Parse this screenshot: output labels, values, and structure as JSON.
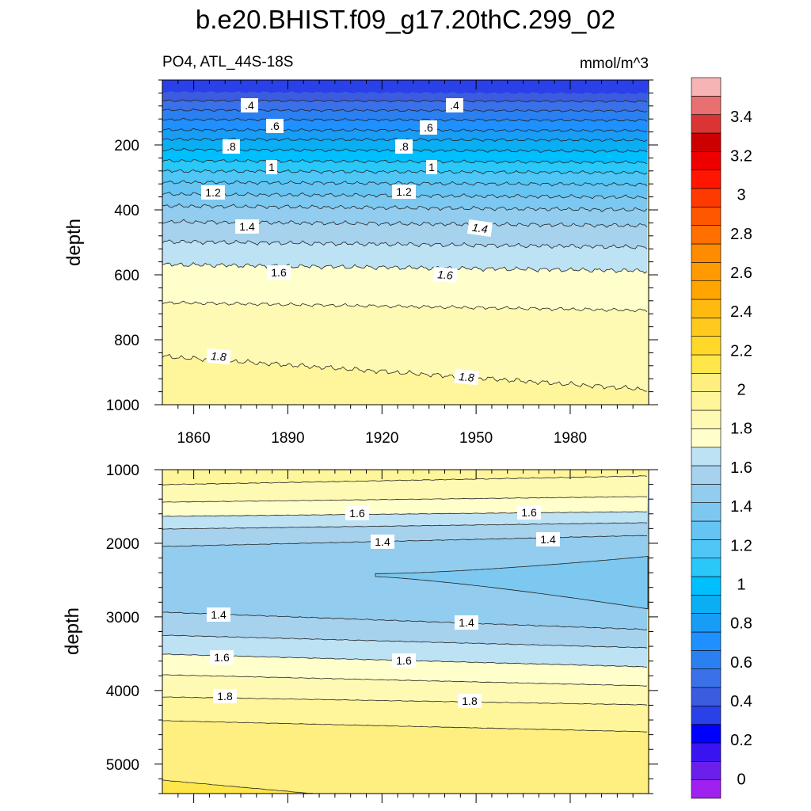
{
  "chart_data": {
    "type": "contour",
    "title": "b.e20.BHIST.f09_g17.20thC.299_02",
    "subtitle_left": "PO4, ATL_44S-18S",
    "subtitle_right": "mmol/m^3",
    "variable": "PO4",
    "units": "mmol/m^3",
    "x_ticks": [
      "1860",
      "1890",
      "1920",
      "1950",
      "1980"
    ],
    "x_tick_values": [
      1860,
      1890,
      1920,
      1950,
      1980
    ],
    "xlim": [
      1850,
      2005
    ],
    "panels": [
      {
        "name": "upper",
        "ylabel": "depth",
        "ylim": [
          0,
          1000
        ],
        "y_ticks": [
          "200",
          "400",
          "600",
          "800",
          "1000"
        ],
        "y_tick_values": [
          200,
          400,
          600,
          800,
          1000
        ],
        "contour_labels": [
          ".4",
          ".4",
          ".6",
          ".6",
          ".8",
          ".8",
          "1",
          "1",
          "1.2",
          "1.2",
          "1.4",
          "1.4",
          "1.6",
          "1.6",
          "1.8",
          "1.8"
        ],
        "approx_isoline_depths": [
          {
            "level": 0.4,
            "depth": 75
          },
          {
            "level": 0.6,
            "depth": 135
          },
          {
            "level": 0.8,
            "depth": 195
          },
          {
            "level": 1.0,
            "depth": 255
          },
          {
            "level": 1.2,
            "depth": 340
          },
          {
            "level": 1.4,
            "depth": 460
          },
          {
            "level": 1.6,
            "depth": 600
          },
          {
            "level": 1.7,
            "depth": 700
          },
          {
            "level": 1.8,
            "depth": 870
          }
        ]
      },
      {
        "name": "lower",
        "ylabel": "depth",
        "ylim": [
          1000,
          5400
        ],
        "y_ticks": [
          "1000",
          "2000",
          "3000",
          "4000",
          "5000"
        ],
        "y_tick_values": [
          1000,
          2000,
          3000,
          4000,
          5000
        ],
        "contour_labels": [
          "1.6",
          "1.6",
          "1.4",
          "1.4",
          "1.4",
          "1.4",
          "1.6",
          "1.6",
          "1.8",
          "1.8"
        ],
        "description": "PO4 minimum (<1.35) core near 2400 m expanding after 1920"
      }
    ],
    "colorbar": {
      "labels": [
        "3.4",
        "3.2",
        "3",
        "2.8",
        "2.6",
        "2.4",
        "2.2",
        "2",
        "1.8",
        "1.6",
        "1.4",
        "1.2",
        "1",
        "0.8",
        "0.6",
        "0.4",
        "0.2",
        "0"
      ],
      "min": -0.1,
      "max": 3.6,
      "step": 0.1,
      "colors": [
        "#A020F0",
        "#6A1FEA",
        "#3A14F0",
        "#0000FF",
        "#2A40E8",
        "#3C5CE0",
        "#3A70E8",
        "#2A80F0",
        "#1E90FF",
        "#179DF5",
        "#0AAEF2",
        "#00BFFF",
        "#29C8F8",
        "#4FC6F5",
        "#66C4F2",
        "#7CC8F0",
        "#92CCEE",
        "#A6D2EE",
        "#BCE2F4",
        "#FFFFCC",
        "#FFFAB3",
        "#FFF59B",
        "#FFEF80",
        "#FFE64A",
        "#FFD82A",
        "#FFCA1E",
        "#FFBA10",
        "#FFA500",
        "#FF9A00",
        "#FF8C00",
        "#FF7000",
        "#FF5600",
        "#FF3A00",
        "#FF1500",
        "#EE0000",
        "#CC0000",
        "#DA3434",
        "#E87070",
        "#F6B4B4"
      ]
    }
  }
}
